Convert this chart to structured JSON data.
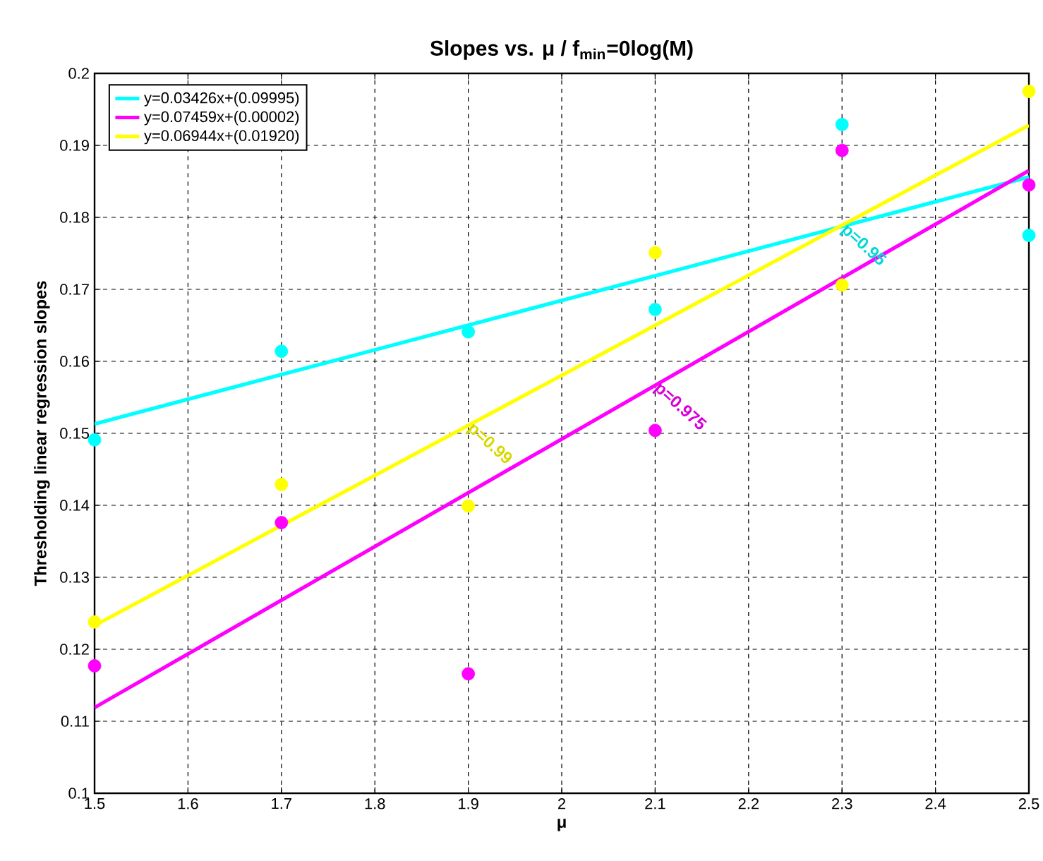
{
  "chart_data": {
    "type": "scatter",
    "title": "Slopes vs. μ / f$_{min}$=0log(M)",
    "xlabel": "μ",
    "ylabel": "Thresholding linear regression slopes",
    "xlim": [
      1.5,
      2.5
    ],
    "ylim": [
      0.1,
      0.2
    ],
    "xticks": [
      1.5,
      1.6,
      1.7,
      1.8,
      1.9,
      2,
      2.1,
      2.2,
      2.3,
      2.4,
      2.5
    ],
    "yticks": [
      0.1,
      0.11,
      0.12,
      0.13,
      0.14,
      0.15,
      0.16,
      0.17,
      0.18,
      0.19,
      0.2
    ],
    "grid": true,
    "legend": "top left",
    "marker": "circle",
    "series": [
      {
        "color": "#00ffff",
        "x": [
          1.5,
          1.7,
          1.9,
          2.1,
          2.3,
          2.5
        ],
        "values": [
          0.1491,
          0.1614,
          0.1641,
          0.1672,
          0.1929,
          0.1775
        ]
      },
      {
        "color": "#ff00ff",
        "x": [
          1.5,
          1.7,
          1.9,
          2.1,
          2.3,
          2.5
        ],
        "values": [
          0.1177,
          0.1376,
          0.1166,
          0.1504,
          0.1893,
          0.1845
        ]
      },
      {
        "color": "#ffff00",
        "x": [
          1.5,
          1.7,
          1.9,
          2.1,
          2.3,
          2.5
        ],
        "values": [
          0.1238,
          0.1429,
          0.1399,
          0.1751,
          0.1706,
          0.1975
        ]
      },
      {
        "type": "line",
        "name": "y=0.03426x+(0.09995)",
        "color": "#00ffff",
        "marker": "none",
        "x": [
          1.5,
          2.5
        ],
        "values": [
          0.1513,
          0.1856
        ]
      },
      {
        "type": "line",
        "name": "y=0.07459x+(0.00002)",
        "color": "#ff00ff",
        "marker": "none",
        "x": [
          1.5,
          2.5
        ],
        "values": [
          0.1119,
          0.1865
        ]
      },
      {
        "type": "line",
        "name": "y=0.06944x+(0.01920)",
        "color": "#ffff00",
        "marker": "none",
        "x": [
          1.5,
          2.5
        ],
        "values": [
          0.1233,
          0.1928
        ]
      }
    ],
    "annotations": [
      {
        "text": "p=0.95",
        "x": 2.3,
        "y": 0.1787
      },
      {
        "text": "p=0.975",
        "x": 2.1,
        "y": 0.1567
      },
      {
        "text": "p=0.99",
        "x": 1.9,
        "y": 0.1511
      }
    ]
  }
}
